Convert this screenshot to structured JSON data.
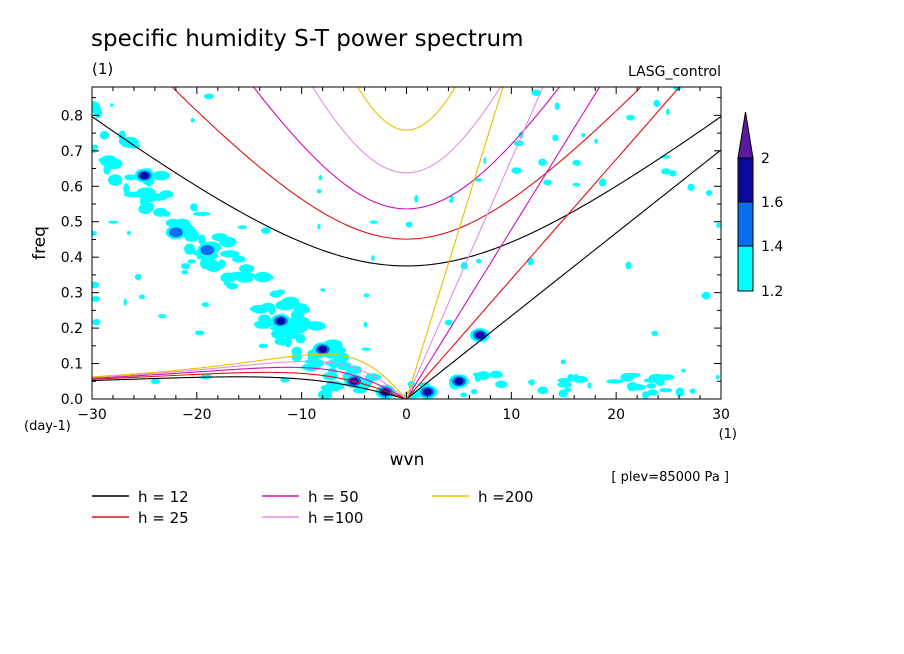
{
  "chart_data": {
    "type": "heatmap",
    "title": "specific humidity S-T power spectrum",
    "subtitle_left": "(1)",
    "subtitle_right": "LASG_control",
    "xlabel": "wvn",
    "ylabel": "freq",
    "x_units": "(1)",
    "y_units": "(day-1)",
    "xlim": [
      -30,
      30
    ],
    "ylim": [
      0,
      0.88
    ],
    "xticks": [
      "-30",
      "-20",
      "-10",
      "0",
      "10",
      "20",
      "30"
    ],
    "yticks": [
      "0.0",
      "0.1",
      "0.2",
      "0.3",
      "0.4",
      "0.5",
      "0.6",
      "0.7",
      "0.8"
    ],
    "note": "[ plev=85000 Pa ]",
    "colorbar": {
      "levels": [
        "1.2",
        "1.4",
        "1.6",
        "2"
      ],
      "colors": [
        "#00ffff",
        "#0a6cf0",
        "#0a0a9a",
        "#5a1aa0"
      ]
    },
    "dispersion_curves": [
      {
        "label": "h = 12",
        "h": 12,
        "color": "#000000"
      },
      {
        "label": "h = 25",
        "h": 25,
        "color": "#e01010"
      },
      {
        "label": "h = 50",
        "h": 50,
        "color": "#d010b0"
      },
      {
        "label": "h =100",
        "h": 100,
        "color": "#e090e0"
      },
      {
        "label": "h =200",
        "h": 200,
        "color": "#e8c000"
      }
    ],
    "high_power_regions": [
      {
        "x": -25,
        "y": 0.63,
        "level": 1.6
      },
      {
        "x": -22,
        "y": 0.47,
        "level": 1.4
      },
      {
        "x": -19,
        "y": 0.42,
        "level": 1.4
      },
      {
        "x": -12,
        "y": 0.22,
        "level": 1.6
      },
      {
        "x": -8,
        "y": 0.14,
        "level": 1.6
      },
      {
        "x": -5,
        "y": 0.05,
        "level": 2
      },
      {
        "x": -2,
        "y": 0.02,
        "level": 1.6
      },
      {
        "x": 2,
        "y": 0.02,
        "level": 1.6
      },
      {
        "x": 5,
        "y": 0.05,
        "level": 1.6
      },
      {
        "x": 7,
        "y": 0.18,
        "level": 1.6
      }
    ]
  }
}
